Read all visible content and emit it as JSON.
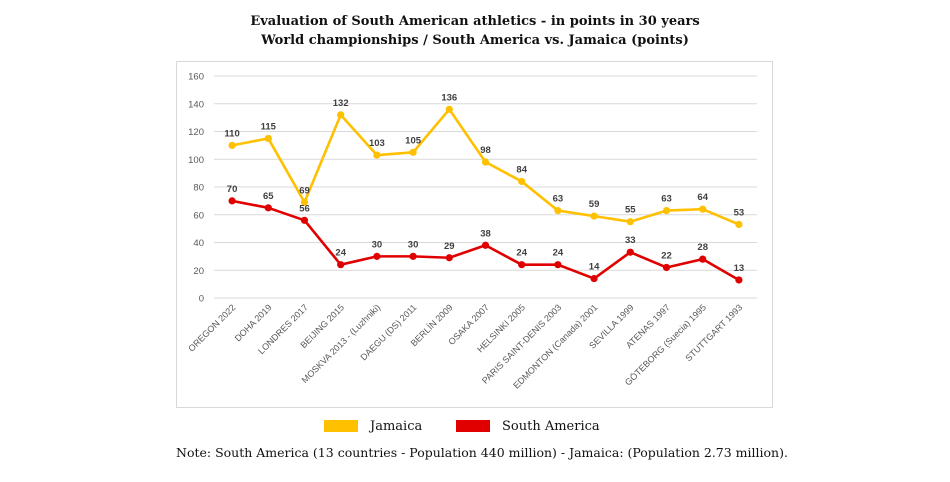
{
  "chart_data": {
    "type": "line",
    "title": "Evaluation of South American athletics - in points in 30 years",
    "subtitle": "World championships  / South America vs. Jamaica (points)",
    "categories": [
      "OREGON 2022",
      "DOHA 2019",
      "LONDRES 2017",
      "BEIJING 2015",
      "MOSKVA 2013 - (Luzhniki)",
      "DAEGU (DS) 2011",
      "BERLÍN 2009",
      "OSAKA 2007",
      "HELSINKI 2005",
      "PARIS SAINT-DENIS 2003",
      "EDMONTON (Canada) 2001",
      "SEVILLA 1999",
      "ATENAS 1997",
      "GÖTEBORG (Suecia) 1995",
      "STUTTGART 1993"
    ],
    "series": [
      {
        "name": "Jamaica",
        "color": "#FFC000",
        "values": [
          110,
          115,
          69,
          132,
          103,
          105,
          136,
          98,
          84,
          63,
          59,
          55,
          63,
          64,
          53
        ]
      },
      {
        "name": "South America",
        "color": "#E00000",
        "values": [
          70,
          65,
          56,
          24,
          30,
          30,
          29,
          38,
          24,
          24,
          14,
          33,
          22,
          28,
          13
        ]
      }
    ],
    "ylim": [
      0,
      160
    ],
    "yticks": [
      0,
      20,
      40,
      60,
      80,
      100,
      120,
      140,
      160
    ],
    "grid": true,
    "legend_position": "bottom"
  },
  "legend": {
    "jamaica_label": "Jamaica",
    "south_america_label": "South America"
  },
  "note": "Note: South America (13 countries - Population 440 million) - Jamaica: (Population 2.73 million)."
}
